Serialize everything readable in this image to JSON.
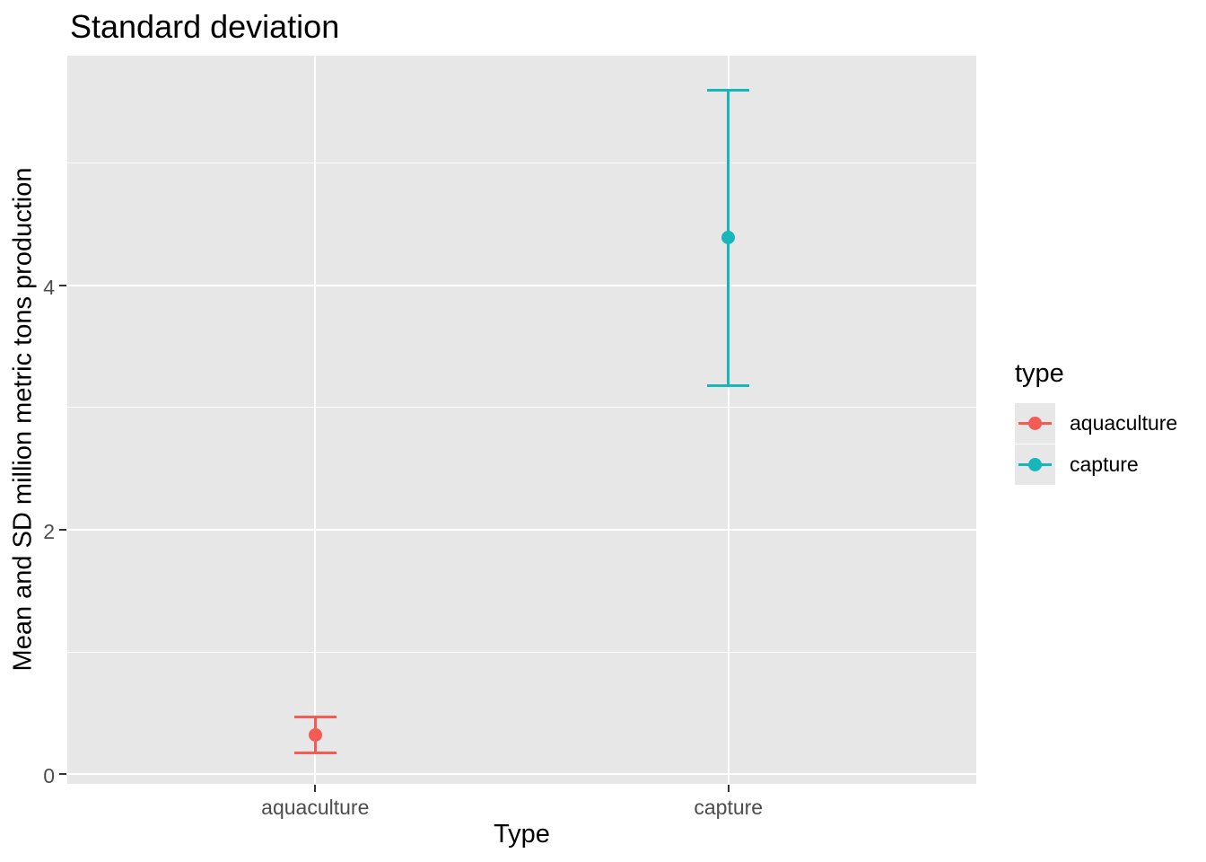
{
  "title": "Standard deviation",
  "chart_data": {
    "type": "scatter",
    "mark": "point-with-errorbar",
    "title": "Standard deviation",
    "xlabel": "Type",
    "ylabel": "Mean and SD million metric tons production",
    "categories": [
      "aquaculture",
      "capture"
    ],
    "series": [
      {
        "name": "aquaculture",
        "color": "#F25C55",
        "mean": 0.32,
        "sd": 0.15,
        "ymin": 0.17,
        "ymax": 0.47
      },
      {
        "name": "capture",
        "color": "#17B6BB",
        "mean": 4.39,
        "sd": 1.21,
        "ymin": 3.18,
        "ymax": 5.6
      }
    ],
    "ylim": [
      -0.08,
      5.88
    ],
    "yticks_major": [
      0,
      2,
      4
    ],
    "yticks_minor": [
      1,
      3,
      5
    ],
    "grid": true,
    "legend": {
      "title": "type",
      "position": "right",
      "entries": [
        "aquaculture",
        "capture"
      ]
    },
    "colors": {
      "panel_bg": "#E7E7E7",
      "grid": "#FFFFFF",
      "tick_mark": "#333333",
      "tick_label": "#4D4D4D",
      "text": "#000000"
    }
  }
}
